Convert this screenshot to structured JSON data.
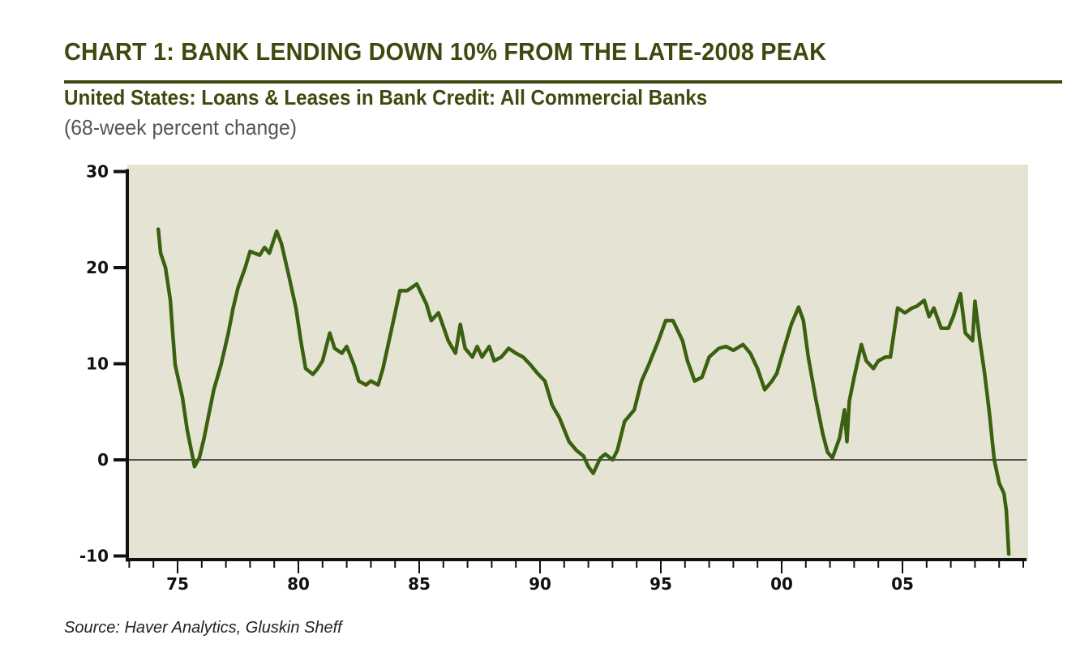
{
  "header": {
    "title": "CHART 1: BANK LENDING DOWN 10% FROM THE LATE-2008 PEAK",
    "subtitle": "United States: Loans & Leases in Bank Credit: All Commercial Banks",
    "unit": "(68-week percent change)"
  },
  "footer": {
    "source": "Source: Haver Analytics, Gluskin Sheff"
  },
  "colors": {
    "title": "#3d4a0f",
    "line": "#3b6010",
    "plot_background": "#e5e4d4",
    "axis": "#111111"
  },
  "chart_data": {
    "type": "line",
    "title": "CHART 1: BANK LENDING DOWN 10% FROM THE LATE-2008 PEAK",
    "subtitle": "United States: Loans & Leases in Bank Credit: All Commercial Banks (68-week percent change)",
    "xlabel": "",
    "ylabel": "",
    "xlim": [
      1973,
      2010
    ],
    "ylim": [
      -10,
      30
    ],
    "yticks": [
      30,
      20,
      10,
      0,
      -10
    ],
    "xticks": [
      1975,
      1980,
      1985,
      1990,
      1995,
      2000,
      2005
    ],
    "xtick_labels": [
      "75",
      "80",
      "85",
      "90",
      "95",
      "00",
      "05"
    ],
    "grid": false,
    "reference_line": 0,
    "legend": null,
    "series": [
      {
        "name": "Loans & Leases in Bank Credit: All Commercial Banks (68-week % change)",
        "x": [
          1974.2,
          1974.3,
          1974.5,
          1974.7,
          1974.8,
          1974.9,
          1975.2,
          1975.4,
          1975.6,
          1975.7,
          1975.9,
          1976.1,
          1976.3,
          1976.5,
          1976.8,
          1977.1,
          1977.3,
          1977.5,
          1977.8,
          1978.0,
          1978.4,
          1978.6,
          1978.8,
          1979.1,
          1979.3,
          1979.6,
          1979.9,
          1980.1,
          1980.3,
          1980.6,
          1980.8,
          1981.0,
          1981.3,
          1981.5,
          1981.8,
          1982.0,
          1982.3,
          1982.5,
          1982.8,
          1983.0,
          1983.3,
          1983.5,
          1983.9,
          1984.2,
          1984.5,
          1984.9,
          1985.3,
          1985.5,
          1985.8,
          1986.2,
          1986.5,
          1986.7,
          1986.9,
          1987.2,
          1987.4,
          1987.6,
          1987.9,
          1988.1,
          1988.4,
          1988.7,
          1989.0,
          1989.3,
          1989.6,
          1989.9,
          1990.2,
          1990.5,
          1990.8,
          1991.2,
          1991.5,
          1991.8,
          1992.0,
          1992.2,
          1992.5,
          1992.7,
          1993.0,
          1993.2,
          1993.5,
          1993.9,
          1994.2,
          1994.5,
          1994.9,
          1995.2,
          1995.5,
          1995.9,
          1996.1,
          1996.4,
          1996.7,
          1997.0,
          1997.4,
          1997.7,
          1998.0,
          1998.4,
          1998.7,
          1999.0,
          1999.3,
          1999.6,
          1999.8,
          2000.1,
          2000.4,
          2000.7,
          2000.9,
          2001.1,
          2001.4,
          2001.7,
          2001.9,
          2002.1,
          2002.4,
          2002.6,
          2002.7,
          2002.8,
          2003.0,
          2003.3,
          2003.5,
          2003.8,
          2004.0,
          2004.3,
          2004.5,
          2004.8,
          2005.1,
          2005.4,
          2005.6,
          2005.9,
          2006.1,
          2006.3,
          2006.6,
          2006.9,
          2007.1,
          2007.4,
          2007.6,
          2007.9,
          2008.0,
          2008.2,
          2008.4,
          2008.6,
          2008.7,
          2008.8,
          2009.0,
          2009.2,
          2009.3,
          2009.4
        ],
        "values": [
          24.0,
          21.5,
          20.0,
          16.6,
          13.2,
          9.9,
          6.5,
          3.1,
          0.6,
          -0.7,
          0.2,
          2.3,
          4.8,
          7.3,
          9.9,
          13.2,
          15.8,
          17.9,
          20.0,
          21.7,
          21.3,
          22.1,
          21.5,
          23.8,
          22.5,
          19.2,
          15.8,
          12.4,
          9.5,
          8.9,
          9.5,
          10.3,
          13.2,
          11.6,
          11.1,
          11.8,
          9.9,
          8.2,
          7.8,
          8.2,
          7.8,
          9.5,
          14.1,
          17.6,
          17.6,
          18.3,
          16.2,
          14.5,
          15.3,
          12.4,
          11.1,
          14.1,
          11.6,
          10.7,
          11.8,
          10.7,
          11.8,
          10.3,
          10.7,
          11.6,
          11.1,
          10.7,
          9.9,
          9.0,
          8.2,
          5.7,
          4.4,
          1.9,
          1.0,
          0.4,
          -0.7,
          -1.4,
          0.2,
          0.6,
          0.0,
          1.0,
          4.0,
          5.2,
          8.2,
          9.9,
          12.4,
          14.5,
          14.5,
          12.4,
          10.3,
          8.2,
          8.6,
          10.7,
          11.6,
          11.8,
          11.4,
          12.0,
          11.1,
          9.5,
          7.3,
          8.2,
          9.0,
          11.6,
          14.1,
          15.9,
          14.5,
          10.7,
          6.5,
          2.7,
          0.8,
          0.2,
          2.3,
          5.2,
          1.9,
          6.1,
          8.6,
          12.0,
          10.3,
          9.5,
          10.3,
          10.7,
          10.7,
          15.8,
          15.3,
          15.8,
          16.0,
          16.6,
          14.9,
          15.8,
          13.7,
          13.7,
          14.9,
          17.3,
          13.2,
          12.4,
          16.5,
          12.4,
          9.0,
          4.8,
          2.3,
          0.0,
          -2.4,
          -3.5,
          -5.3,
          -9.8
        ]
      }
    ],
    "annotations": []
  }
}
